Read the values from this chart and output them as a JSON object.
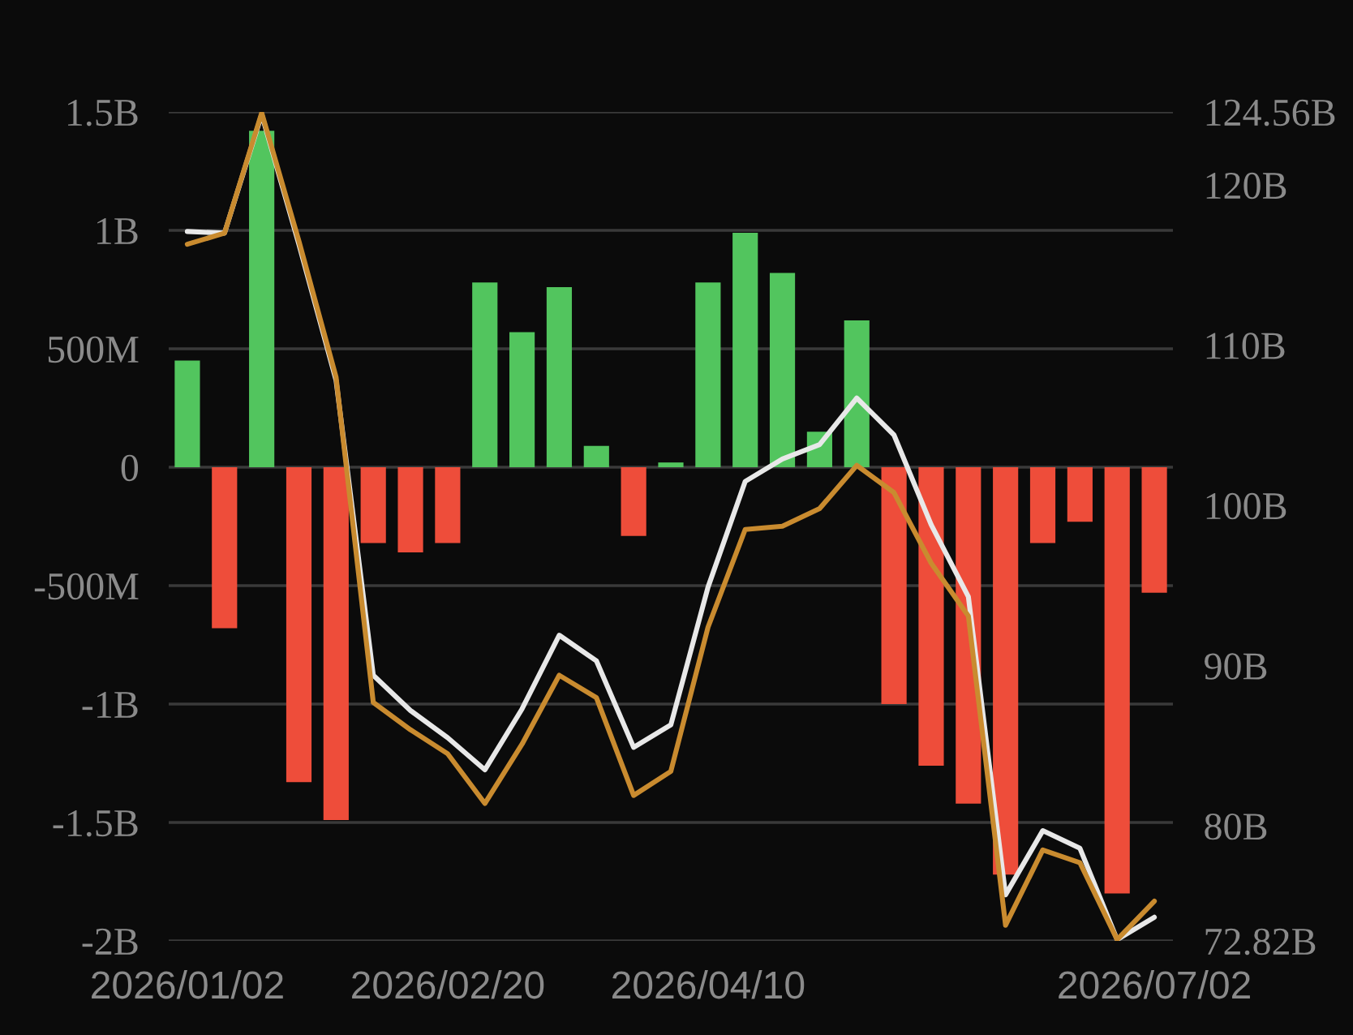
{
  "chart_data": {
    "type": "bar",
    "categories": [
      "2026/01/02",
      null,
      null,
      null,
      null,
      null,
      null,
      "2026/02/20",
      null,
      null,
      null,
      null,
      null,
      null,
      "2026/04/10",
      null,
      null,
      null,
      null,
      null,
      null,
      null,
      null,
      null,
      null,
      null,
      "2026/07/02"
    ],
    "series": [
      {
        "values": [
          450000000,
          -680000000,
          1420000000,
          -1330000000,
          -1490000000,
          -320000000,
          -360000000,
          -320000000,
          780000000,
          570000000,
          760000000,
          90000000,
          -290000000,
          20000000,
          780000000,
          990000000,
          820000000,
          150000000,
          620000000,
          -1000000000,
          -1260000000,
          -1420000000,
          -1720000000,
          -320000000,
          -230000000,
          -1800000000,
          -530000000
        ],
        "colors": [
          "#52c55e",
          "#ee4d3a",
          "#52c55e",
          "#ee4d3a",
          "#ee4d3a",
          "#ee4d3a",
          "#ee4d3a",
          "#ee4d3a",
          "#52c55e",
          "#52c55e",
          "#52c55e",
          "#52c55e",
          "#ee4d3a",
          "#52c55e",
          "#52c55e",
          "#52c55e",
          "#52c55e",
          "#52c55e",
          "#52c55e",
          "#ee4d3a",
          "#ee4d3a",
          "#ee4d3a",
          "#ee4d3a",
          "#ee4d3a",
          "#ee4d3a",
          "#ee4d3a",
          "#ee4d3a"
        ]
      },
      {
        "type": "line",
        "axis": "y2",
        "color": "#e8e8e8",
        "values": [
          117.1,
          117.0,
          124.4,
          116.3,
          107.8,
          89.4,
          87.2,
          85.5,
          83.5,
          87.3,
          91.9,
          90.3,
          84.9,
          86.3,
          94.9,
          101.5,
          102.9,
          103.8,
          106.7,
          104.4,
          98.8,
          94.3,
          75.7,
          79.7,
          78.6,
          72.9,
          74.3
        ]
      },
      {
        "type": "line",
        "axis": "y2",
        "color": "#c98b2f",
        "values": [
          116.3,
          117.0,
          124.5,
          116.5,
          108.0,
          87.7,
          86.0,
          84.5,
          81.4,
          85.1,
          89.4,
          88.0,
          81.9,
          83.4,
          92.4,
          98.5,
          98.7,
          99.8,
          102.5,
          100.8,
          96.4,
          93.1,
          73.8,
          78.5,
          77.7,
          72.9,
          75.3
        ]
      }
    ],
    "ylim": [
      -2000000000,
      1500000000
    ],
    "yticks": [
      {
        "value": 1500000000,
        "label": "1.5B"
      },
      {
        "value": 1000000000,
        "label": "1B"
      },
      {
        "value": 500000000,
        "label": "500M"
      },
      0,
      {
        "value": -500000000,
        "label": "-500M"
      },
      {
        "value": -1000000000,
        "label": "-1B"
      },
      {
        "value": -1500000000,
        "label": "-1.5B"
      },
      {
        "value": -2000000000,
        "label": "-2B"
      }
    ],
    "y2lim": [
      72.82,
      124.56
    ],
    "y2ticks": [
      {
        "value": 124.56,
        "label": "124.56B"
      },
      {
        "value": 120,
        "label": "120B"
      },
      {
        "value": 110,
        "label": "110B"
      },
      {
        "value": 100,
        "label": "100B"
      },
      {
        "value": 90,
        "label": "90B"
      },
      {
        "value": 80,
        "label": "80B"
      },
      {
        "value": 72.82,
        "label": "72.82B"
      }
    ],
    "grid": "y"
  }
}
